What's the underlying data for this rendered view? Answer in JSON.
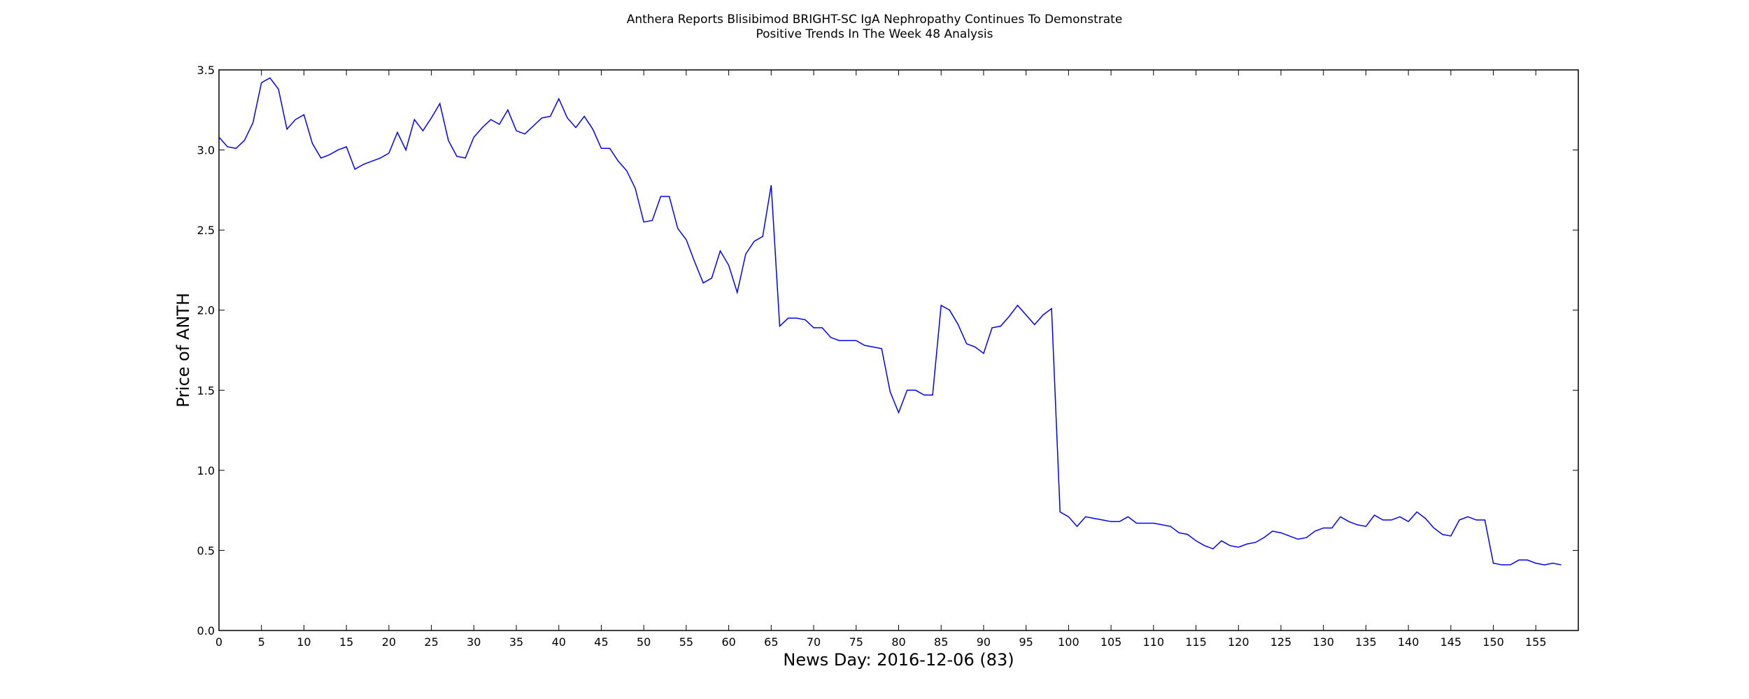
{
  "chart_data": {
    "type": "line",
    "title_lines": [
      "Anthera Reports Blisibimod BRIGHT-SC IgA Nephropathy Continues To Demonstrate",
      "Positive Trends In The Week 48 Analysis"
    ],
    "xlabel": "News Day: 2016-12-06 (83)",
    "ylabel": "Price of ANTH",
    "xlim": [
      0,
      160
    ],
    "ylim": [
      0,
      3.5
    ],
    "x_ticks": [
      0,
      5,
      10,
      15,
      20,
      25,
      30,
      35,
      40,
      45,
      50,
      55,
      60,
      65,
      70,
      75,
      80,
      85,
      90,
      95,
      100,
      105,
      110,
      115,
      120,
      125,
      130,
      135,
      140,
      145,
      150,
      155
    ],
    "x_tick_labels": [
      "0",
      "5",
      "10",
      "15",
      "20",
      "25",
      "30",
      "35",
      "40",
      "45",
      "50",
      "55",
      "60",
      "65",
      "70",
      "75",
      "80",
      "85",
      "90",
      "95",
      "100",
      "105",
      "110",
      "115",
      "120",
      "125",
      "130",
      "135",
      "140",
      "145",
      "150",
      "155"
    ],
    "y_ticks": [
      0,
      0.5,
      1.0,
      1.5,
      2.0,
      2.5,
      3.0,
      3.5
    ],
    "y_tick_labels": [
      "0.0",
      "0.5",
      "1.0",
      "1.5",
      "2.0",
      "2.5",
      "3.0",
      "3.5"
    ],
    "grid": false,
    "line_color": "#0000ff",
    "series": [
      {
        "values": [
          3.08,
          3.02,
          3.01,
          3.06,
          3.17,
          3.42,
          3.45,
          3.38,
          3.13,
          3.19,
          3.22,
          3.04,
          2.95,
          2.97,
          3.0,
          3.02,
          2.88,
          2.91,
          2.93,
          2.95,
          2.98,
          3.11,
          3.0,
          3.19,
          3.12,
          3.2,
          3.29,
          3.06,
          2.96,
          2.95,
          3.08,
          3.14,
          3.19,
          3.16,
          3.25,
          3.12,
          3.1,
          3.15,
          3.2,
          3.21,
          3.32,
          3.2,
          3.14,
          3.21,
          3.13,
          3.01,
          3.01,
          2.93,
          2.87,
          2.76,
          2.55,
          2.56,
          2.71,
          2.71,
          2.51,
          2.44,
          2.3,
          2.17,
          2.2,
          2.37,
          2.28,
          2.11,
          2.35,
          2.43,
          2.46,
          2.78,
          1.9,
          1.95,
          1.95,
          1.94,
          1.89,
          1.89,
          1.83,
          1.81,
          1.81,
          1.81,
          1.78,
          1.77,
          1.76,
          1.49,
          1.36,
          1.5,
          1.5,
          1.47,
          1.47,
          2.03,
          2.0,
          1.91,
          1.79,
          1.77,
          1.73,
          1.89,
          1.9,
          1.96,
          2.03,
          1.97,
          1.91,
          1.97,
          2.01,
          0.74,
          0.71,
          0.65,
          0.71,
          0.7,
          0.69,
          0.68,
          0.68,
          0.71,
          0.67,
          0.67,
          0.67,
          0.66,
          0.65,
          0.61,
          0.6,
          0.56,
          0.53,
          0.51,
          0.56,
          0.53,
          0.52,
          0.54,
          0.55,
          0.58,
          0.62,
          0.61,
          0.59,
          0.57,
          0.58,
          0.62,
          0.64,
          0.64,
          0.71,
          0.68,
          0.66,
          0.65,
          0.72,
          0.69,
          0.69,
          0.71,
          0.68,
          0.74,
          0.7,
          0.64,
          0.6,
          0.59,
          0.69,
          0.71,
          0.69,
          0.69,
          0.42,
          0.41,
          0.41,
          0.44,
          0.44,
          0.42,
          0.41,
          0.42,
          0.41
        ]
      }
    ]
  }
}
